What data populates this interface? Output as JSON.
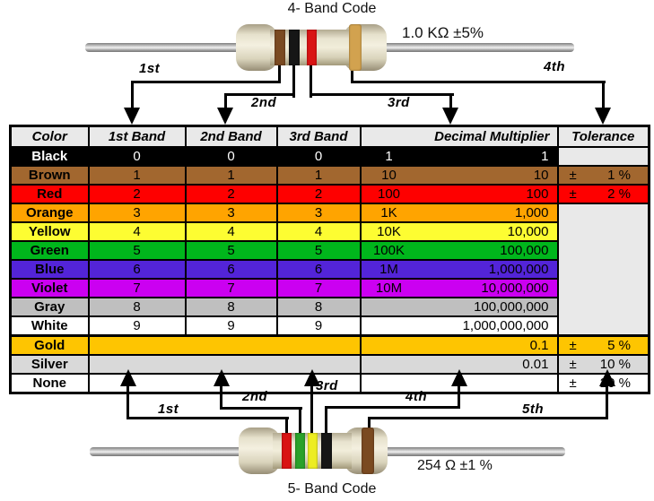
{
  "four_band": {
    "title": "4- Band Code",
    "value": "1.0 KΩ ±5%",
    "bands": [
      {
        "name": "brown",
        "color": "#7a4a21"
      },
      {
        "name": "black",
        "color": "#161616"
      },
      {
        "name": "red",
        "color": "#d91414"
      },
      {
        "name": "gold",
        "color": "#d2a24f"
      }
    ]
  },
  "five_band": {
    "title": "5- Band Code",
    "value": "254 Ω ±1 %",
    "bands": [
      {
        "name": "red",
        "color": "#d91414"
      },
      {
        "name": "green",
        "color": "#2ba12b"
      },
      {
        "name": "yellow",
        "color": "#eded22"
      },
      {
        "name": "black",
        "color": "#161616"
      },
      {
        "name": "brown",
        "color": "#7a4a21"
      }
    ]
  },
  "arrows": {
    "top": [
      "1st",
      "2nd",
      "3rd",
      "4th"
    ],
    "bottom": [
      "1st",
      "2nd",
      "3rd",
      "4th",
      "5th"
    ]
  },
  "table": {
    "headers": [
      "Color",
      "1st Band",
      "2nd Band",
      "3rd Band",
      "Decimal Multiplier",
      "Tolerance"
    ],
    "plus_minus": "±",
    "empty_tolerance_bg": "#e9e9e9",
    "rows": [
      {
        "color": "Black",
        "bg": "#000000",
        "fg": "#ffffff",
        "bands": [
          "0",
          "0",
          "0"
        ],
        "mult_abbr": "1",
        "mult_full": "1",
        "tol_type": "empty"
      },
      {
        "color": "Brown",
        "bg": "#a2672f",
        "fg": "#000000",
        "bands": [
          "1",
          "1",
          "1"
        ],
        "mult_abbr": "10",
        "mult_full": "10",
        "tolerance": "1 %",
        "tol_type": "value"
      },
      {
        "color": "Red",
        "bg": "#fe0000",
        "fg": "#000000",
        "bands": [
          "2",
          "2",
          "2"
        ],
        "mult_abbr": "100",
        "mult_full": "100",
        "tolerance": "2 %",
        "tol_type": "value"
      },
      {
        "color": "Orange",
        "bg": "#ffa400",
        "fg": "#000000",
        "bands": [
          "3",
          "3",
          "3"
        ],
        "mult_abbr": "1K",
        "mult_full": "1,000",
        "tol_type": "empty-span"
      },
      {
        "color": "Yellow",
        "bg": "#fdfd32",
        "fg": "#000000",
        "bands": [
          "4",
          "4",
          "4"
        ],
        "mult_abbr": "10K",
        "mult_full": "10,000",
        "tol_type": "covered"
      },
      {
        "color": "Green",
        "bg": "#00b61c",
        "fg": "#000000",
        "bands": [
          "5",
          "5",
          "5"
        ],
        "mult_abbr": "100K",
        "mult_full": "100,000",
        "tol_type": "covered"
      },
      {
        "color": "Blue",
        "bg": "#5324d8",
        "fg": "#000000",
        "bands": [
          "6",
          "6",
          "6"
        ],
        "mult_abbr": "1M",
        "mult_full": "1,000,000",
        "tol_type": "covered"
      },
      {
        "color": "Violet",
        "bg": "#cb00f1",
        "fg": "#000000",
        "bands": [
          "7",
          "7",
          "7"
        ],
        "mult_abbr": "10M",
        "mult_full": "10,000,000",
        "tol_type": "covered"
      },
      {
        "color": "Gray",
        "bg": "#bfbfbf",
        "fg": "#000000",
        "bands": [
          "8",
          "8",
          "8"
        ],
        "mult_abbr": "",
        "mult_full": "100,000,000",
        "tol_type": "covered"
      },
      {
        "color": "White",
        "bg": "#ffffff",
        "fg": "#000000",
        "bands": [
          "9",
          "9",
          "9"
        ],
        "mult_abbr": "",
        "mult_full": "1,000,000,000",
        "tol_type": "covered"
      },
      {
        "color": "Gold",
        "bg": "#fec501",
        "fg": "#000000",
        "bands_merged": true,
        "mult_abbr": "",
        "mult_full": "0.1",
        "tolerance": "5 %",
        "tol_type": "value",
        "thick_top": true
      },
      {
        "color": "Silver",
        "bg": "#d9d9d9",
        "fg": "#000000",
        "bands_merged": true,
        "mult_abbr": "",
        "mult_full": "0.01",
        "tolerance": "10 %",
        "tol_type": "value"
      },
      {
        "color": "None",
        "bg": "#ffffff",
        "fg": "#000000",
        "bands_merged": true,
        "mult_abbr": "",
        "mult_full": "",
        "tolerance": "20 %",
        "tol_type": "value"
      }
    ]
  }
}
